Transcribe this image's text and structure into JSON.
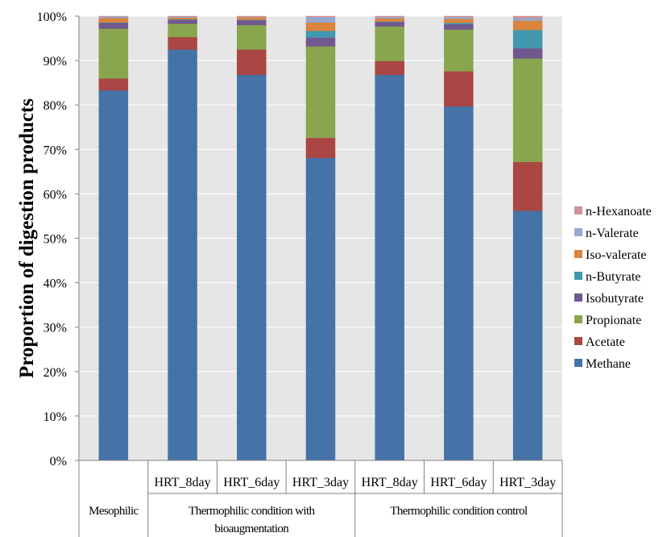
{
  "chart_data": {
    "type": "bar",
    "stacked": true,
    "ylabel": "Proportion of digestion products",
    "ylim": [
      0,
      100
    ],
    "yticks": [
      "0%",
      "10%",
      "20%",
      "30%",
      "40%",
      "50%",
      "60%",
      "70%",
      "80%",
      "90%",
      "100%"
    ],
    "grid": true,
    "legend_position": "right",
    "categories": [
      "",
      "HRT_8day",
      "HRT_6day",
      "HRT_3day",
      "HRT_8day",
      "HRT_6day",
      "HRT_3day"
    ],
    "groups": [
      {
        "label": "Mesophilic",
        "span": [
          0,
          0
        ]
      },
      {
        "label": "Thermophilic condition with bioaugmentation",
        "line1": "Thermophilic condition with",
        "line2": "bioaugmentation",
        "span": [
          1,
          3
        ]
      },
      {
        "label": "Thermophilic condition control",
        "span": [
          4,
          6
        ]
      }
    ],
    "series": [
      {
        "name": "Methane",
        "color": "#4572a7",
        "values": [
          83.3,
          92.5,
          86.8,
          68.1,
          86.8,
          79.7,
          56.2
        ]
      },
      {
        "name": "Acetate",
        "color": "#aa4643",
        "values": [
          2.7,
          2.8,
          5.7,
          4.5,
          3.1,
          7.9,
          11.0
        ]
      },
      {
        "name": "Propionate",
        "color": "#89a54e",
        "values": [
          11.2,
          3.0,
          5.5,
          20.6,
          7.8,
          9.4,
          23.3
        ]
      },
      {
        "name": "Isobutyrate",
        "color": "#71588f",
        "values": [
          1.3,
          0.9,
          1.1,
          2.0,
          1.0,
          1.2,
          2.3
        ]
      },
      {
        "name": "n-Butyrate",
        "color": "#4198af",
        "values": [
          0.1,
          0.1,
          0.1,
          1.5,
          0.1,
          0.3,
          4.1
        ]
      },
      {
        "name": "Iso-valerate",
        "color": "#db843d",
        "values": [
          1.0,
          0.4,
          0.6,
          1.9,
          0.7,
          0.9,
          2.1
        ]
      },
      {
        "name": "n-Valerate",
        "color": "#93a9cf",
        "values": [
          0.3,
          0.2,
          0.1,
          1.2,
          0.3,
          0.4,
          0.6
        ]
      },
      {
        "name": "n-Hexanoate",
        "color": "#d19392",
        "values": [
          0.1,
          0.1,
          0.1,
          0.2,
          0.2,
          0.2,
          0.4
        ]
      }
    ]
  }
}
